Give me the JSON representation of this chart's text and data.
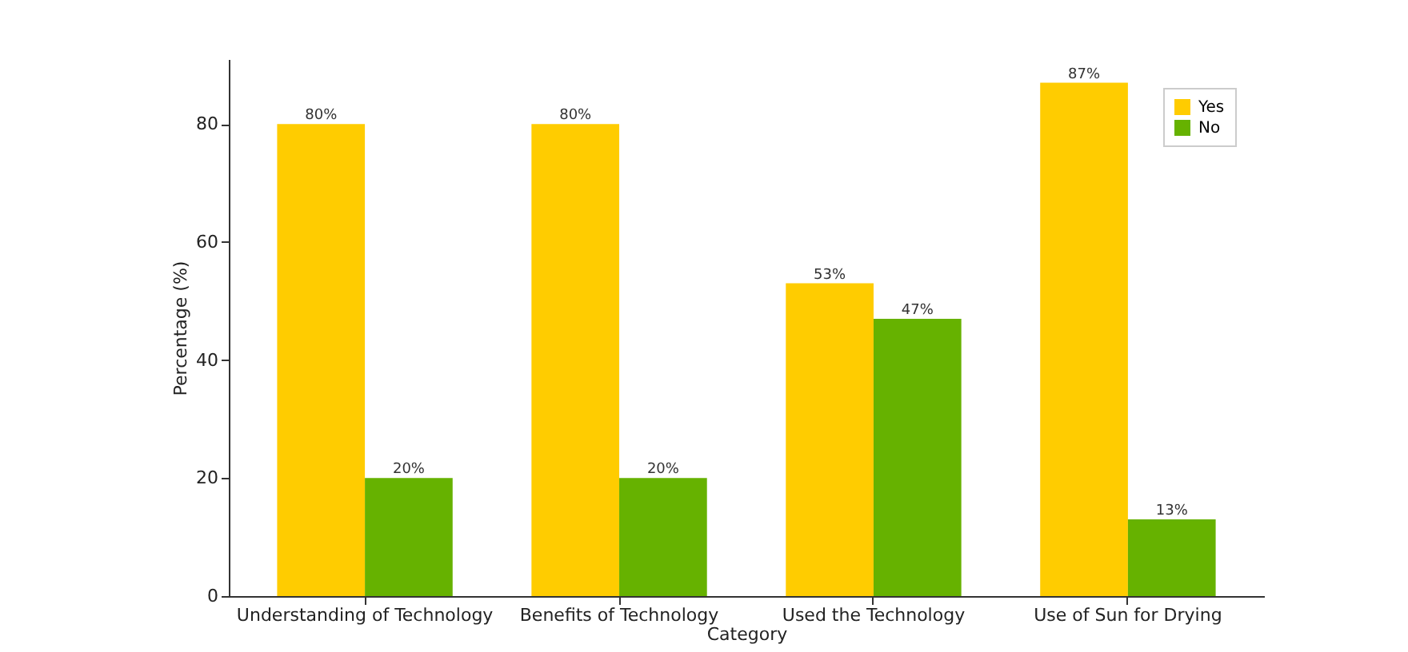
{
  "chart_data": {
    "type": "bar",
    "xlabel": "Category",
    "ylabel": "Percentage (%)",
    "categories": [
      "Understanding of Technology",
      "Benefits of Technology",
      "Used the Technology",
      "Use of Sun for Drying"
    ],
    "series": [
      {
        "name": "Yes",
        "color": "#ffcc00",
        "values": [
          80,
          80,
          53,
          87
        ],
        "value_labels": [
          "80%",
          "80%",
          "53%",
          "87%"
        ]
      },
      {
        "name": "No",
        "color": "#66b200",
        "values": [
          20,
          20,
          47,
          13
        ],
        "value_labels": [
          "20%",
          "20%",
          "47%",
          "13%"
        ]
      }
    ],
    "ylim": [
      0,
      91
    ],
    "yticks": [
      0,
      20,
      40,
      60,
      80
    ],
    "grid": false,
    "legend": "top right"
  }
}
